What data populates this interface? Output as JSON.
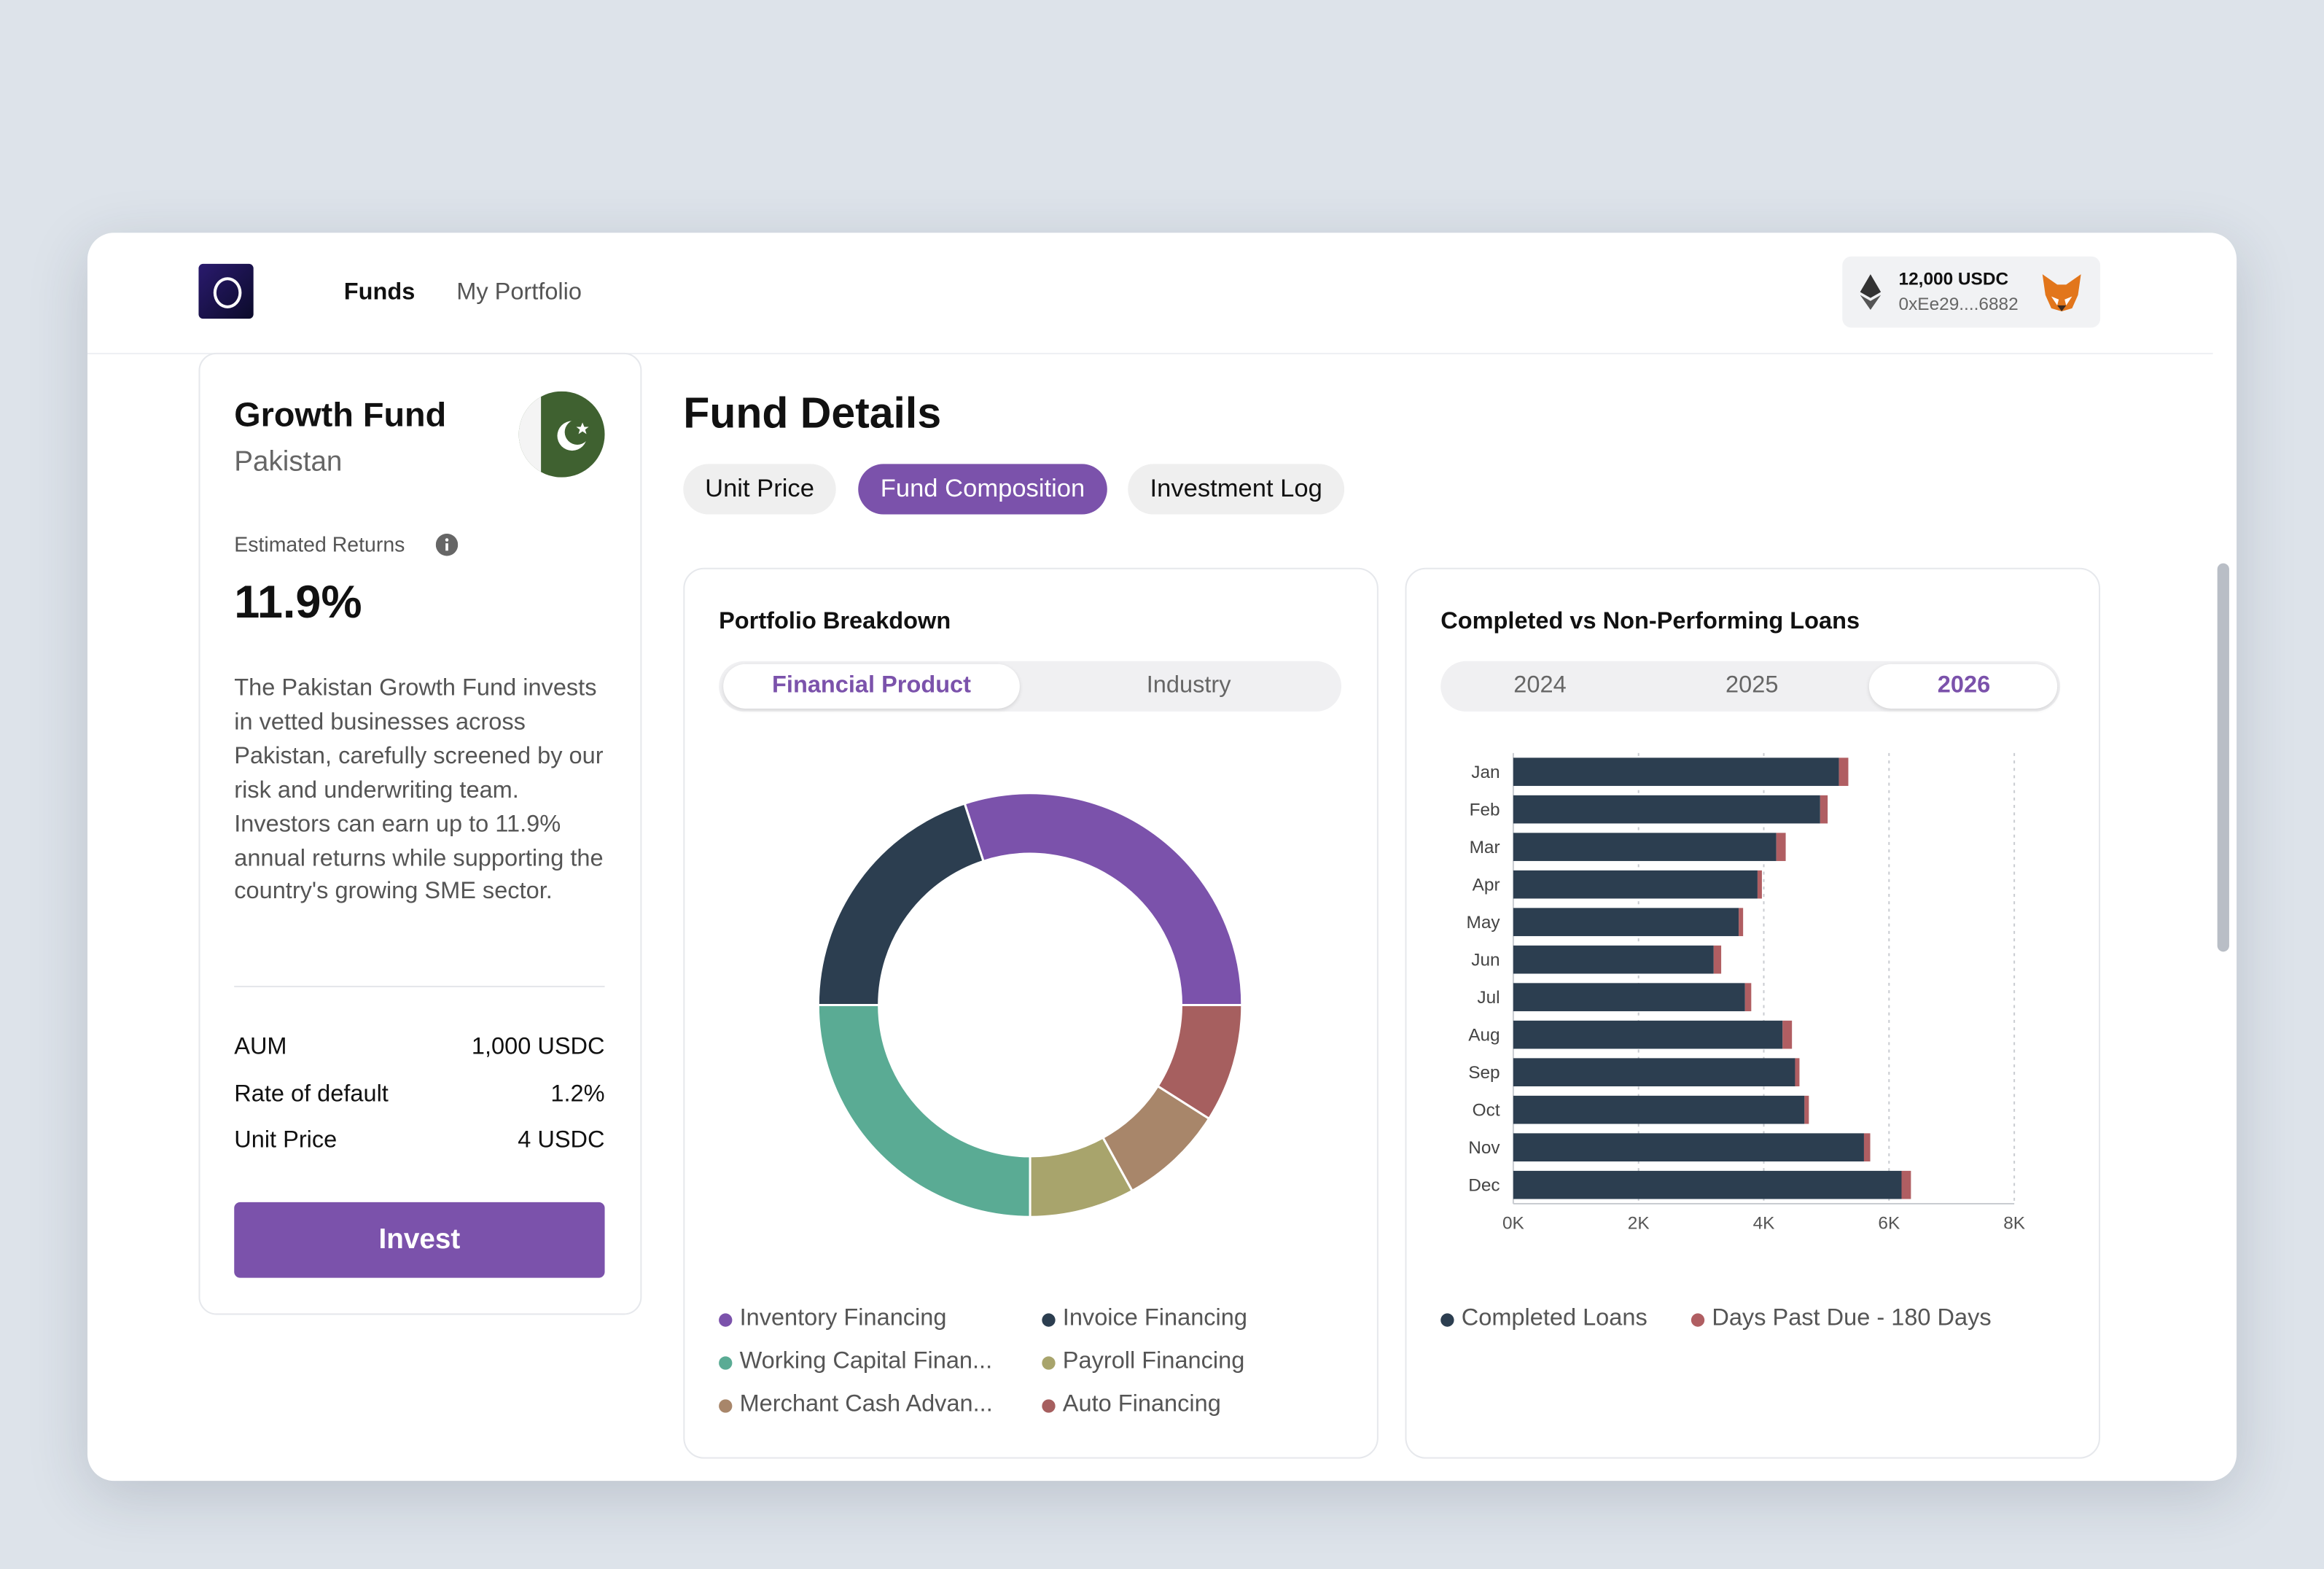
{
  "nav": {
    "links": [
      "Funds",
      "My Portfolio"
    ]
  },
  "wallet": {
    "balance": "12,000 USDC",
    "address": "0xEe29....6882"
  },
  "fund": {
    "title": "Growth Fund",
    "country": "Pakistan",
    "returns_label": "Estimated Returns",
    "returns": "11.9%",
    "description": "The Pakistan Growth Fund invests in vetted businesses across Pakistan, carefully screened by our risk and underwriting team. Investors can earn up to 11.9% annual returns while supporting the country's growing SME sector.",
    "stats": [
      [
        "AUM",
        "1,000 USDC"
      ],
      [
        "Rate of default",
        "1.2%"
      ],
      [
        "Unit Price",
        "4 USDC"
      ]
    ],
    "button": "Invest"
  },
  "details": {
    "title": "Fund Details",
    "tabs": [
      "Unit Price",
      "Fund Composition",
      "Investment Log"
    ]
  },
  "chart_data": [
    {
      "type": "pie",
      "title": "Portfolio Breakdown",
      "tabs": [
        "Financial Product",
        "Industry"
      ],
      "categories": [
        "Inventory Financing",
        "Invoice Financing",
        "Working Capital Finan...",
        "Payroll Financing",
        "Merchant Cash Advan...",
        "Auto Financing"
      ],
      "values": [
        30,
        20,
        25,
        8,
        8,
        9
      ],
      "colors": [
        "#7b52ab",
        "#2c3e50",
        "#5aab94",
        "#a8a46c",
        "#a8866a",
        "#a65f5f"
      ]
    },
    {
      "type": "bar",
      "title": "Completed vs Non-Performing Loans",
      "tabs": [
        "2024",
        "2025",
        "2026"
      ],
      "categories": [
        "Jan",
        "Feb",
        "Mar",
        "Apr",
        "May",
        "Jun",
        "Jul",
        "Aug",
        "Sep",
        "Oct",
        "Nov",
        "Dec"
      ],
      "series": [
        {
          "name": "Completed Loans",
          "color": "#2c3e50",
          "values": [
            5200,
            4900,
            4200,
            3900,
            3600,
            3200,
            3700,
            4300,
            4500,
            4650,
            5600,
            6200
          ]
        },
        {
          "name": "Days Past Due - 180 Days",
          "color": "#b05e62",
          "values": [
            150,
            120,
            150,
            70,
            70,
            120,
            100,
            150,
            70,
            70,
            100,
            150
          ]
        }
      ],
      "xlim": [
        0,
        8000
      ],
      "xticks": [
        {
          "value": 0,
          "label": "0K"
        },
        {
          "value": 2000,
          "label": "2K"
        },
        {
          "value": 4000,
          "label": "4K"
        },
        {
          "value": 6000,
          "label": "6K"
        },
        {
          "value": 8000,
          "label": "8K"
        }
      ],
      "grid": true
    }
  ]
}
